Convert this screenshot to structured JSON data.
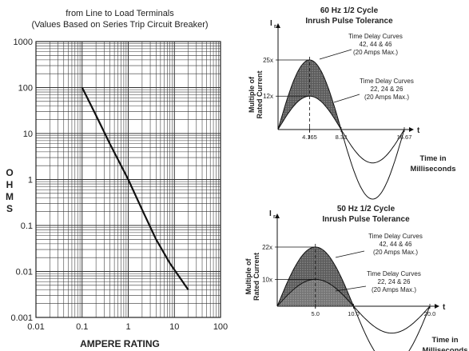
{
  "chart_data": [
    {
      "type": "line",
      "scale": "log-log",
      "title_line1": "from Line to Load Terminals",
      "title_line2": "(Values Based on Series Trip Circuit Breaker)",
      "xlabel": "AMPERE RATING",
      "ylabel": "OHMS",
      "xlim": [
        0.01,
        100
      ],
      "ylim": [
        0.001,
        1000
      ],
      "grid": true,
      "x_ticks": [
        "0.01",
        "0.1",
        "1",
        "10",
        "100"
      ],
      "y_ticks": [
        "1000",
        "100",
        "10",
        "1",
        "0.1",
        "0.01",
        "0.001"
      ],
      "series": [
        {
          "x": [
            0.1,
            0.2,
            0.4,
            1,
            2,
            4,
            8,
            20
          ],
          "y": [
            100,
            25,
            6,
            1,
            0.22,
            0.05,
            0.015,
            0.004
          ]
        }
      ]
    },
    {
      "type": "area",
      "title_line1": "60 Hz 1/2 Cycle",
      "title_line2": "Inrush Pulse Tolerance",
      "y_axis_symbol": "I",
      "y_axis_sub": "r",
      "ylabel_line1": "Multiple of",
      "ylabel_line2": "Rated Current",
      "t_symbol": "t",
      "xlabel_line1": "Time in",
      "xlabel_line2": "Milliseconds",
      "x_ticks": [
        4.165,
        8.33,
        16.67
      ],
      "x_tick_labels": [
        "4.165",
        "8.33",
        "16.67"
      ],
      "y_ticks": [
        12,
        25
      ],
      "y_tick_labels": [
        "12x",
        "25x"
      ],
      "period_end": 8.33,
      "series": [
        {
          "curves": "42, 44 & 46",
          "peak": 25
        },
        {
          "curves": "22, 24 & 26",
          "peak": 12
        }
      ],
      "annotations": [
        {
          "line1": "Time Delay Curves",
          "line2": "42, 44 & 46",
          "line3": "(20 Amps Max.)"
        },
        {
          "line1": "Time Delay Curves",
          "line2": "22, 24 & 26",
          "line3": "(20 Amps Max.)"
        }
      ]
    },
    {
      "type": "area",
      "title_line1": "50 Hz 1/2 Cycle",
      "title_line2": "Inrush Pulse Tolerance",
      "y_axis_symbol": "I",
      "y_axis_sub": "r",
      "ylabel_line1": "Multiple of",
      "ylabel_line2": "Rated Current",
      "t_symbol": "t",
      "xlabel_line1": "Time in",
      "xlabel_line2": "Milliseconds",
      "x_ticks": [
        5.0,
        10.0,
        20.0
      ],
      "x_tick_labels": [
        "5.0",
        "10.0",
        "20.0"
      ],
      "y_ticks": [
        10,
        22
      ],
      "y_tick_labels": [
        "10x",
        "22x"
      ],
      "period_end": 10.0,
      "series": [
        {
          "curves": "42, 44 & 46",
          "peak": 22
        },
        {
          "curves": "22, 24 & 26",
          "peak": 10
        }
      ],
      "annotations": [
        {
          "line1": "Time Delay Curves",
          "line2": "42, 44 & 46",
          "line3": "(20 Amps Max.)"
        },
        {
          "line1": "Time Delay Curves",
          "line2": "22, 24 & 26",
          "line3": "(20 Amps Max.)"
        }
      ]
    }
  ]
}
